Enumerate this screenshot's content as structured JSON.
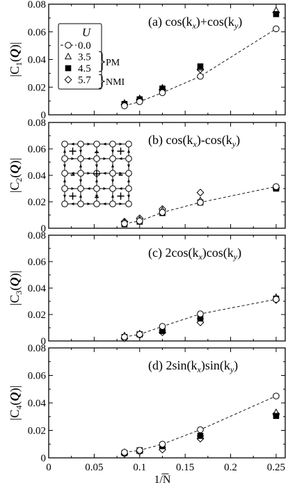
{
  "chart_data": [
    {
      "type": "scatter",
      "panel_label": "(a) cos(k",
      "panel_label_parts": [
        "(a) cos(k",
        "x",
        ")+cos(k",
        "y",
        ")"
      ],
      "ylabel_parts": [
        "|C",
        "1",
        "(",
        "Q",
        ")|"
      ],
      "ylim": [
        0,
        0.08
      ],
      "yticks": [
        "0",
        "0.02",
        "0.04",
        "0.06",
        "0.08"
      ],
      "xlim": [
        0,
        0.26
      ],
      "series": [
        {
          "name": "0.0",
          "marker": "circle",
          "x": [
            0.0833,
            0.1,
            0.125,
            0.1667,
            0.25
          ],
          "y": [
            0.0065,
            0.0095,
            0.016,
            0.0278,
            0.0622
          ]
        },
        {
          "name": "3.5",
          "marker": "triangle",
          "x": [
            0.0833,
            0.1,
            0.125,
            0.1667,
            0.25
          ],
          "y": [
            0.0085,
            0.0118,
            0.0195,
            0.034,
            0.0755
          ]
        },
        {
          "name": "4.5",
          "marker": "square",
          "x": [
            0.0833,
            0.1,
            0.125,
            0.1667,
            0.25
          ],
          "y": [
            0.0078,
            0.0112,
            0.019,
            0.035,
            0.0728
          ]
        },
        {
          "name": "5.7",
          "marker": "diamond",
          "x": [
            0.0833,
            0.1,
            0.125,
            0.1667,
            0.25
          ],
          "y": [
            0.0075,
            0.011,
            0.0182,
            0.0328,
            0.074
          ]
        }
      ]
    },
    {
      "type": "scatter",
      "panel_label_parts": [
        "(b) cos(k",
        "x",
        ")-cos(k",
        "y",
        ")"
      ],
      "ylabel_parts": [
        "|C",
        "2",
        "(",
        "Q",
        ")|"
      ],
      "ylim": [
        0,
        0.08
      ],
      "yticks": [
        "0",
        "0.02",
        "0.04",
        "0.06",
        "0.08"
      ],
      "xlim": [
        0,
        0.26
      ],
      "inset_signs": [
        [
          "+",
          "-",
          "+"
        ],
        [
          "-",
          "+",
          "-"
        ],
        [
          "+",
          "-",
          "+"
        ]
      ],
      "series": [
        {
          "name": "0.0",
          "marker": "circle",
          "x": [
            0.0833,
            0.1,
            0.125,
            0.1667,
            0.25
          ],
          "y": [
            0.0035,
            0.0055,
            0.012,
            0.0195,
            0.0315
          ]
        },
        {
          "name": "3.5",
          "marker": "triangle",
          "x": [
            0.0833,
            0.1,
            0.125,
            0.1667,
            0.25
          ],
          "y": [
            0.0045,
            0.0065,
            0.0135,
            0.021,
            0.031
          ]
        },
        {
          "name": "4.5",
          "marker": "square",
          "x": [
            0.0833,
            0.1,
            0.125,
            0.1667,
            0.25
          ],
          "y": [
            0.003,
            0.005,
            0.0115,
            0.0195,
            0.03
          ]
        },
        {
          "name": "5.7",
          "marker": "diamond",
          "x": [
            0.0833,
            0.1,
            0.125,
            0.1667,
            0.25
          ],
          "y": [
            0.005,
            0.0075,
            0.0145,
            0.027,
            0.0305
          ]
        }
      ]
    },
    {
      "type": "scatter",
      "panel_label_parts": [
        "(c) 2cos(k",
        "x",
        ")cos(k",
        "y",
        ")"
      ],
      "ylabel_parts": [
        "|C",
        "3",
        "(",
        "Q",
        ")|"
      ],
      "ylim": [
        0,
        0.08
      ],
      "yticks": [
        "0",
        "0.02",
        "0.04",
        "0.06",
        "0.08"
      ],
      "xlim": [
        0,
        0.26
      ],
      "series": [
        {
          "name": "0.0",
          "marker": "circle",
          "x": [
            0.0833,
            0.1,
            0.125,
            0.1667,
            0.25
          ],
          "y": [
            0.003,
            0.005,
            0.011,
            0.0205,
            0.0315
          ]
        },
        {
          "name": "3.5",
          "marker": "triangle",
          "x": [
            0.0833,
            0.1,
            0.125,
            0.1667,
            0.25
          ],
          "y": [
            0.004,
            0.0055,
            0.0095,
            0.0185,
            0.033
          ]
        },
        {
          "name": "4.5",
          "marker": "square",
          "x": [
            0.0833,
            0.1,
            0.125,
            0.1667,
            0.25
          ],
          "y": [
            0.003,
            0.005,
            0.0075,
            0.017,
            0.032
          ]
        },
        {
          "name": "5.7",
          "marker": "diamond",
          "x": [
            0.0833,
            0.1,
            0.125,
            0.1667,
            0.25
          ],
          "y": [
            0.002,
            0.0045,
            0.0065,
            0.014,
            0.031
          ]
        }
      ]
    },
    {
      "type": "scatter",
      "panel_label_parts": [
        "(d) 2sin(k",
        "x",
        ")sin(k",
        "y",
        ")"
      ],
      "ylabel_parts": [
        "|C",
        "4",
        "(",
        "Q",
        ")|"
      ],
      "ylim": [
        0,
        0.08
      ],
      "yticks": [
        "0",
        "0.02",
        "0.04",
        "0.06",
        "0.08"
      ],
      "xlim": [
        0,
        0.26
      ],
      "xticks": [
        "0",
        "0.05",
        "0.1",
        "0.15",
        "0.2",
        "0.25"
      ],
      "xlabel": "1/N",
      "series": [
        {
          "name": "0.0",
          "marker": "circle",
          "x": [
            0.0833,
            0.1,
            0.125,
            0.1667,
            0.25
          ],
          "y": [
            0.004,
            0.0055,
            0.01,
            0.0205,
            0.045
          ]
        },
        {
          "name": "3.5",
          "marker": "triangle",
          "x": [
            0.0833,
            0.1,
            0.125,
            0.1667,
            0.25
          ],
          "y": [
            0.004,
            0.005,
            0.009,
            0.0175,
            0.033
          ]
        },
        {
          "name": "4.5",
          "marker": "square",
          "x": [
            0.0833,
            0.1,
            0.125,
            0.1667,
            0.25
          ],
          "y": [
            0.0035,
            0.0055,
            0.0085,
            0.016,
            0.0305
          ]
        },
        {
          "name": "5.7",
          "marker": "diamond",
          "x": [
            0.0833,
            0.1,
            0.125,
            0.1667,
            0.25
          ],
          "y": [
            0.003,
            0.0045,
            0.006,
            0.014,
            0.032
          ]
        }
      ]
    }
  ],
  "legend": {
    "title": "U",
    "entries": [
      "0.0",
      "3.5",
      "4.5",
      "5.7"
    ],
    "group_pm": "PM",
    "group_nmi": "NMI"
  }
}
